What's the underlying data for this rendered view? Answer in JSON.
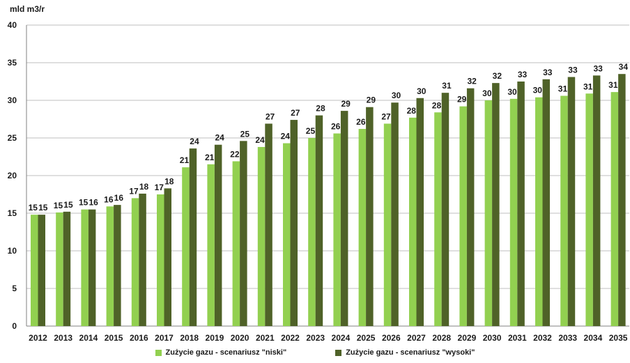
{
  "chart_data": {
    "type": "bar",
    "ylabel": "mld m3/r",
    "ylim": [
      0,
      40
    ],
    "yticks": [
      0,
      5,
      10,
      15,
      20,
      25,
      30,
      35,
      40
    ],
    "grid": true,
    "legend_position": "bottom",
    "categories": [
      "2012",
      "2013",
      "2014",
      "2015",
      "2016",
      "2017",
      "2018",
      "2019",
      "2020",
      "2021",
      "2022",
      "2023",
      "2024",
      "2025",
      "2026",
      "2027",
      "2028",
      "2029",
      "2030",
      "2031",
      "2032",
      "2033",
      "2034",
      "2035"
    ],
    "series": [
      {
        "name": "Zużycie gazu - scenariusz \"niski\"",
        "color": "#92d050",
        "values": [
          14.8,
          15.1,
          15.5,
          15.9,
          17.0,
          17.5,
          21.1,
          21.5,
          21.9,
          23.8,
          24.3,
          25.0,
          25.6,
          26.2,
          26.9,
          27.7,
          28.4,
          29.2,
          30.0,
          30.2,
          30.4,
          30.6,
          30.9,
          31.1
        ],
        "labels": [
          "15",
          "15",
          "15",
          "16",
          "17",
          "17",
          "21",
          "21",
          "22",
          "24",
          "24",
          "25",
          "26",
          "26",
          "27",
          "28",
          "28",
          "29",
          "30",
          "30",
          "30",
          "31",
          "31",
          "31"
        ]
      },
      {
        "name": "Zużycie gazu - scenariusz \"wysoki\"",
        "color": "#4f6228",
        "values": [
          14.8,
          15.2,
          15.5,
          16.1,
          17.6,
          18.3,
          23.6,
          24.1,
          24.6,
          26.9,
          27.4,
          28.0,
          28.6,
          29.1,
          29.7,
          30.3,
          31.0,
          31.6,
          32.3,
          32.5,
          32.8,
          33.1,
          33.3,
          33.5
        ],
        "labels": [
          "15",
          "15",
          "16",
          "16",
          "18",
          "18",
          "24",
          "24",
          "25",
          "27",
          "27",
          "28",
          "29",
          "29",
          "30",
          "30",
          "31",
          "32",
          "32",
          "33",
          "33",
          "33",
          "33",
          "34"
        ]
      }
    ]
  }
}
